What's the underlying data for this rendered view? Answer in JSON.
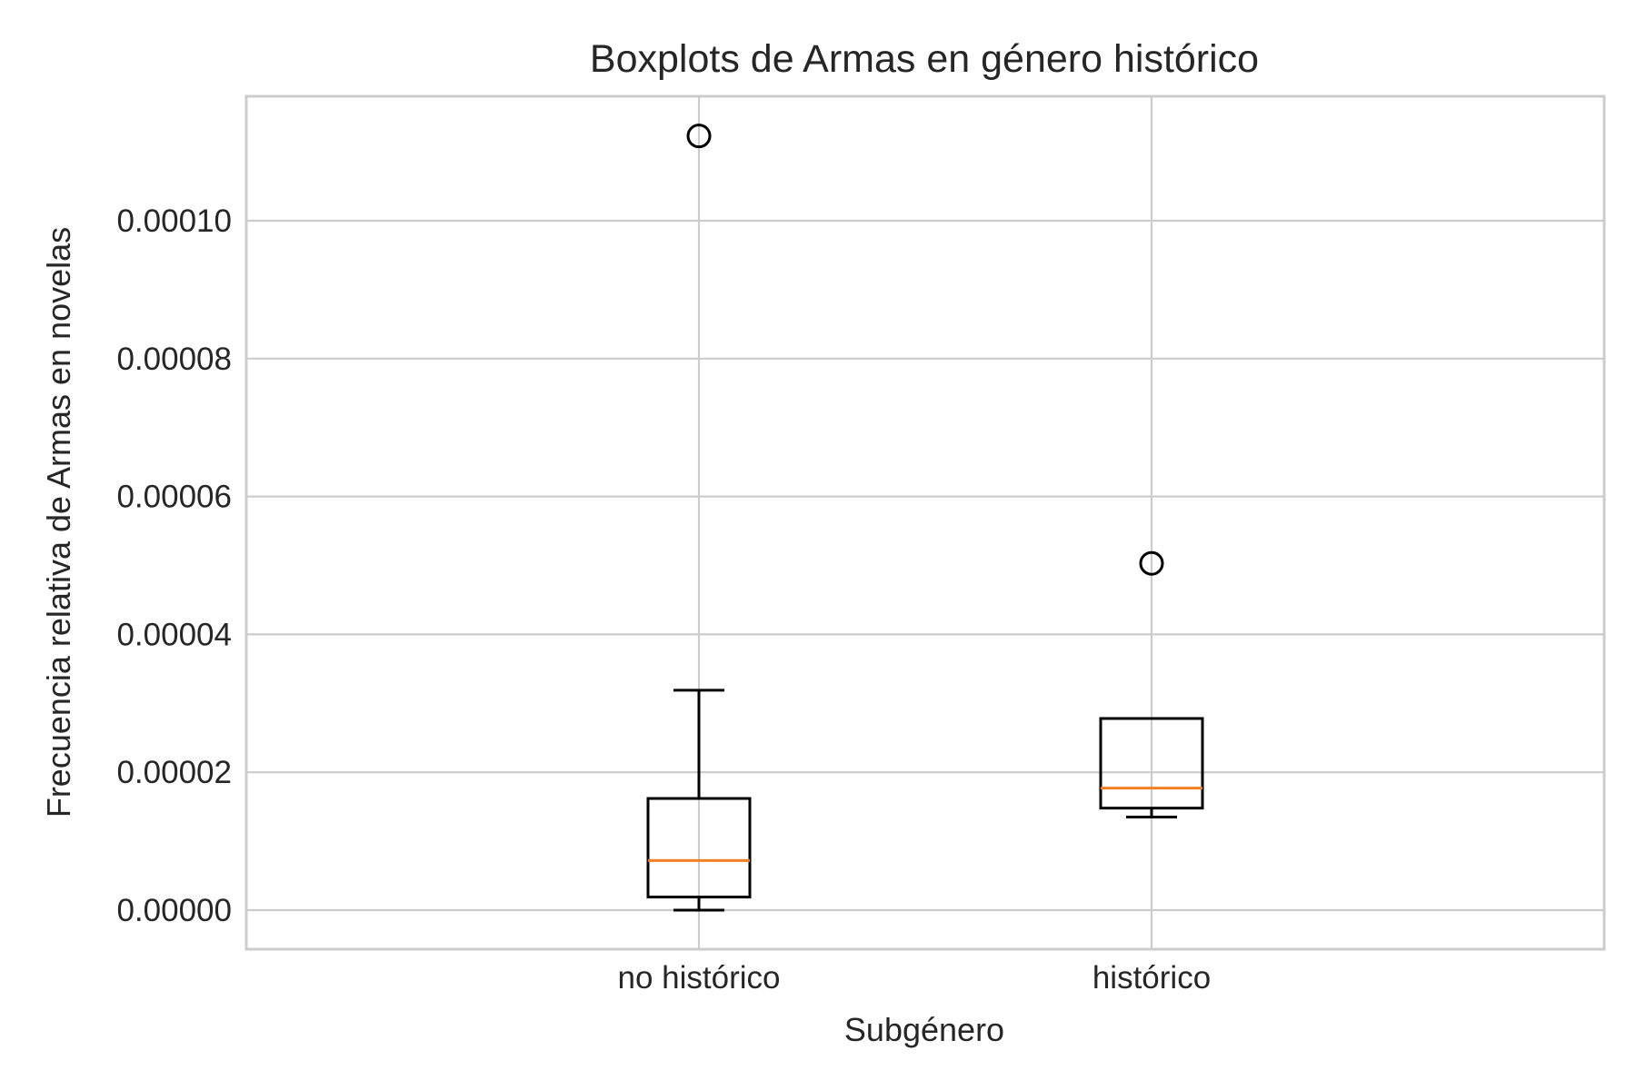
{
  "chart_data": {
    "type": "boxplot",
    "title": "Boxplots de Armas en género histórico",
    "xlabel": "Subgénero",
    "ylabel": "Frecuencia relativa de Armas en novelas",
    "categories": [
      "no histórico",
      "histórico"
    ],
    "ylim": [
      -5.5e-06,
      0.000118
    ],
    "yticks": [
      0.0,
      2e-05,
      4e-05,
      6e-05,
      8e-05,
      0.0001
    ],
    "ytick_labels": [
      "0.00000",
      "0.00002",
      "0.00004",
      "0.00006",
      "0.00008",
      "0.00010"
    ],
    "grid": true,
    "boxes": [
      {
        "name": "no histórico",
        "whislo": 0.0,
        "q1": 1.9e-06,
        "med": 7.2e-06,
        "q3": 1.62e-05,
        "whishi": 3.19e-05,
        "fliers": [
          0.0001123
        ]
      },
      {
        "name": "histórico",
        "whislo": 1.35e-05,
        "q1": 1.48e-05,
        "med": 1.77e-05,
        "q3": 2.78e-05,
        "whishi": 2.78e-05,
        "fliers": [
          5.03e-05
        ]
      }
    ],
    "colors": {
      "box": "#000000",
      "median": "#f28022",
      "grid": "#cccccc"
    }
  }
}
